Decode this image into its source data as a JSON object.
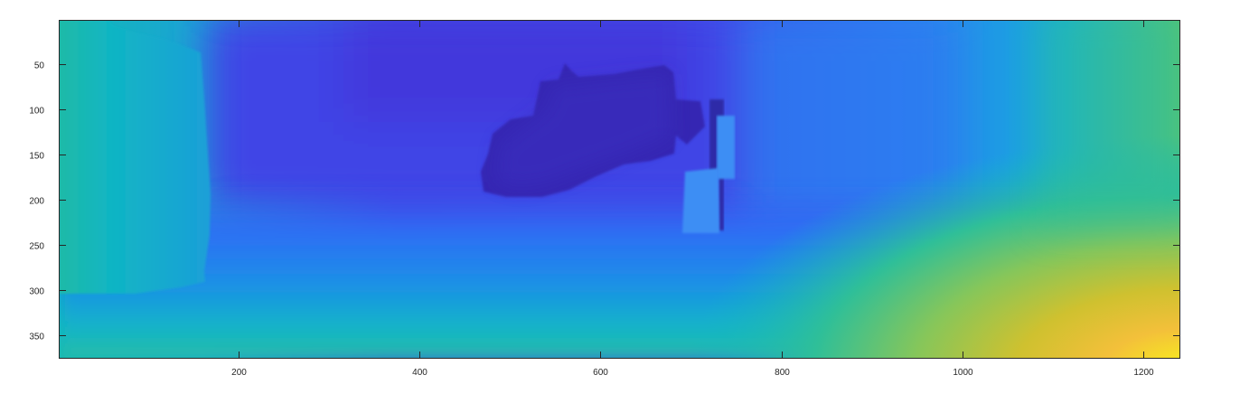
{
  "chart_data": {
    "type": "heatmap",
    "title": "",
    "xlabel": "",
    "ylabel": "",
    "colormap": "parula",
    "xlim": [
      1,
      1241
    ],
    "ylim": [
      376,
      1
    ],
    "y_reversed": true,
    "grid": false,
    "legend": "none",
    "xticks": [
      {
        "value": 200,
        "label": "200"
      },
      {
        "value": 400,
        "label": "400"
      },
      {
        "value": 600,
        "label": "600"
      },
      {
        "value": 800,
        "label": "800"
      },
      {
        "value": 1000,
        "label": "1000"
      },
      {
        "value": 1200,
        "label": "1200"
      }
    ],
    "yticks": [
      {
        "value": 50,
        "label": "50"
      },
      {
        "value": 100,
        "label": "100"
      },
      {
        "value": 150,
        "label": "150"
      },
      {
        "value": 200,
        "label": "200"
      },
      {
        "value": 250,
        "label": "250"
      },
      {
        "value": 300,
        "label": "300"
      },
      {
        "value": 350,
        "label": "350"
      }
    ],
    "regions": [
      {
        "name": "left-wall",
        "x": [
          1,
          165
        ],
        "y": [
          1,
          310
        ],
        "level": 0.45
      },
      {
        "name": "back-wall",
        "x": [
          165,
          760
        ],
        "y": [
          1,
          230
        ],
        "level": 0.12
      },
      {
        "name": "dark-object",
        "x": [
          470,
          745
        ],
        "y": [
          60,
          215
        ],
        "level": 0.04
      },
      {
        "name": "ground-bright",
        "x": [
          850,
          1241
        ],
        "y": [
          230,
          376
        ],
        "level": 0.85
      },
      {
        "name": "right-side",
        "x": [
          1100,
          1241
        ],
        "y": [
          1,
          230
        ],
        "level": 0.6
      }
    ]
  }
}
